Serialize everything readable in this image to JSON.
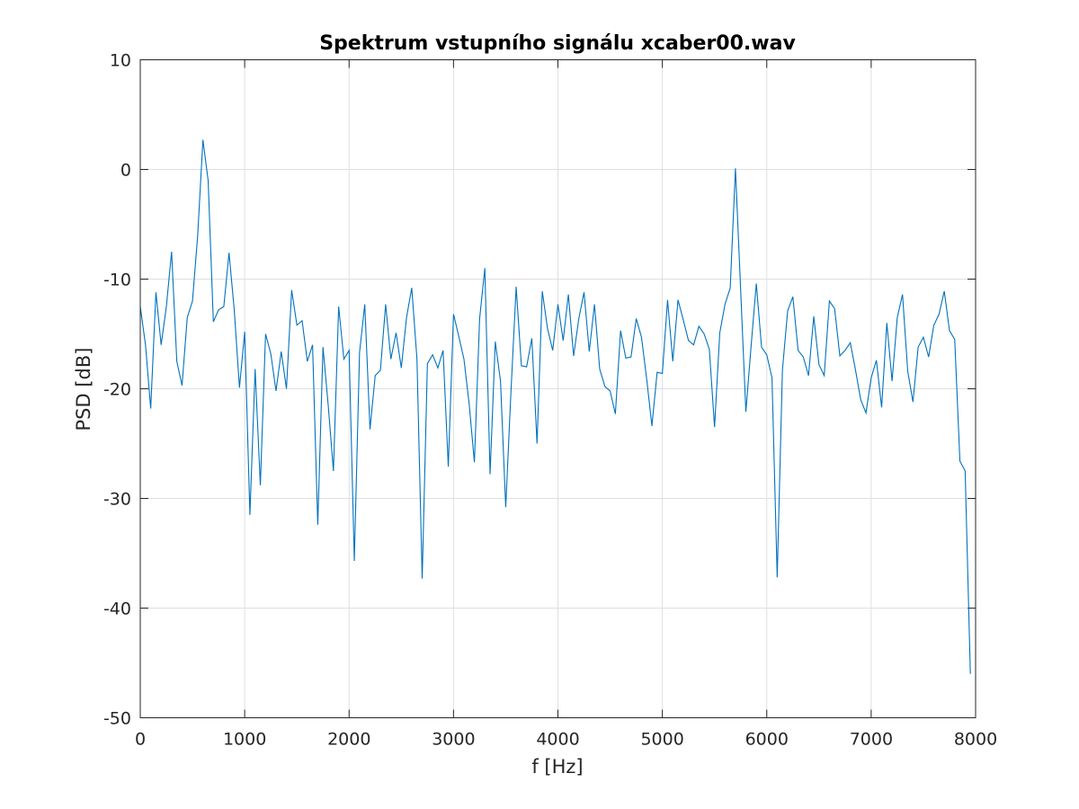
{
  "chart_data": {
    "type": "line",
    "title": "Spektrum vstupního signálu xcaber00.wav",
    "xlabel": "f [Hz]",
    "ylabel": "PSD [dB]",
    "xlim": [
      0,
      8000
    ],
    "ylim": [
      -50,
      10
    ],
    "xticks": [
      0,
      1000,
      2000,
      3000,
      4000,
      5000,
      6000,
      7000,
      8000
    ],
    "yticks": [
      10,
      0,
      -10,
      -20,
      -30,
      -40,
      -50
    ],
    "xtick_labels": [
      "0",
      "1000",
      "2000",
      "3000",
      "4000",
      "5000",
      "6000",
      "7000",
      "8000"
    ],
    "ytick_labels": [
      "10",
      "0",
      "-10",
      "-20",
      "-30",
      "-40",
      "-50"
    ],
    "grid": true,
    "line_color": "#0072bd",
    "series": [
      {
        "x": [
          0,
          50,
          100,
          150,
          200,
          250,
          300,
          350,
          400,
          450,
          500,
          550,
          600,
          650,
          700,
          750,
          800,
          850,
          900,
          950,
          1000,
          1050,
          1100,
          1150,
          1200,
          1250,
          1300,
          1350,
          1400,
          1450,
          1500,
          1550,
          1600,
          1650,
          1700,
          1750,
          1800,
          1850,
          1900,
          1950,
          2000,
          2050,
          2100,
          2150,
          2200,
          2250,
          2300,
          2350,
          2400,
          2450,
          2500,
          2550,
          2600,
          2650,
          2700,
          2750,
          2800,
          2850,
          2900,
          2950,
          3000,
          3050,
          3100,
          3150,
          3200,
          3250,
          3300,
          3350,
          3400,
          3450,
          3500,
          3550,
          3600,
          3650,
          3700,
          3750,
          3800,
          3850,
          3900,
          3950,
          4000,
          4050,
          4100,
          4150,
          4200,
          4250,
          4300,
          4350,
          4400,
          4450,
          4500,
          4550,
          4600,
          4650,
          4700,
          4750,
          4800,
          4850,
          4900,
          4950,
          5000,
          5050,
          5100,
          5150,
          5200,
          5250,
          5300,
          5350,
          5400,
          5450,
          5500,
          5550,
          5600,
          5650,
          5700,
          5750,
          5800,
          5850,
          5900,
          5950,
          6000,
          6050,
          6100,
          6150,
          6200,
          6250,
          6300,
          6350,
          6400,
          6450,
          6500,
          6550,
          6600,
          6650,
          6700,
          6750,
          6800,
          6850,
          6900,
          6950,
          7000,
          7050,
          7100,
          7150,
          7200,
          7250,
          7300,
          7350,
          7400,
          7450,
          7500,
          7550,
          7600,
          7650,
          7700,
          7750,
          7800,
          7850,
          7900,
          7950
        ],
        "y": [
          -12.5,
          -16,
          -21.8,
          -11.2,
          -16,
          -12.5,
          -7.5,
          -17.5,
          -19.7,
          -13.5,
          -12,
          -6,
          2.7,
          -1,
          -13.9,
          -12.8,
          -12.5,
          -7.6,
          -12.8,
          -19.9,
          -14.8,
          -31.5,
          -18.2,
          -28.8,
          -15,
          -16.8,
          -20.2,
          -16.6,
          -20,
          -11,
          -14.2,
          -13.8,
          -17.5,
          -16,
          -32.4,
          -16.2,
          -21.5,
          -27.5,
          -12.5,
          -17.3,
          -16.5,
          -35.7,
          -16.7,
          -12.3,
          -23.7,
          -18.8,
          -18.3,
          -12.3,
          -17.3,
          -14.9,
          -18.1,
          -13.5,
          -10.8,
          -17.3,
          -37.3,
          -17.7,
          -16.9,
          -18.1,
          -16.5,
          -27.1,
          -13.2,
          -15.2,
          -17.3,
          -21.4,
          -26.7,
          -13.6,
          -9,
          -27.8,
          -15.7,
          -19.3,
          -30.8,
          -20.3,
          -10.7,
          -17.9,
          -18,
          -15.4,
          -25,
          -11.1,
          -14.5,
          -16.5,
          -12.3,
          -15.6,
          -11.4,
          -17,
          -13.6,
          -11.2,
          -16.6,
          -12.3,
          -18.2,
          -19.8,
          -20.2,
          -22.3,
          -14.7,
          -17.2,
          -17.1,
          -13.6,
          -15.3,
          -19.1,
          -23.4,
          -18.5,
          -18.6,
          -11.9,
          -17.5,
          -11.9,
          -13.7,
          -15.6,
          -16,
          -14.3,
          -15,
          -16.4,
          -23.5,
          -14.9,
          -12.3,
          -10.8,
          0.1,
          -11,
          -22.1,
          -16.1,
          -10.4,
          -16.2,
          -16.9,
          -19,
          -37.2,
          -18.3,
          -12.9,
          -11.6,
          -16.5,
          -17.1,
          -18.8,
          -13.4,
          -17.8,
          -18.8,
          -12,
          -12.7,
          -17,
          -16.5,
          -15.8,
          -18.3,
          -21,
          -22.2,
          -19,
          -17.4,
          -21.7,
          -14,
          -19.3,
          -13.5,
          -11.4,
          -18.4,
          -21.2,
          -16.2,
          -15.3,
          -17.1,
          -14.2,
          -13.2,
          -11.1,
          -14.7,
          -15.5,
          -26.6,
          -27.5,
          -46
        ]
      }
    ]
  }
}
